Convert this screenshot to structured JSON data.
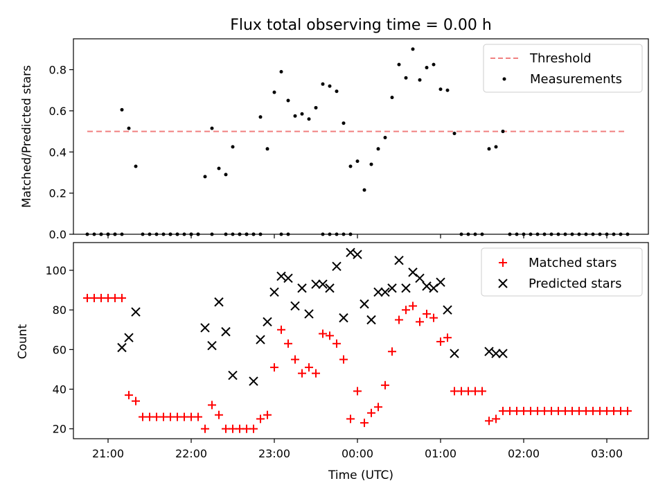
{
  "chart_data": [
    {
      "type": "scatter",
      "title": "Flux total observing time = 0.00 h",
      "xlabel": "",
      "ylabel": "Matched/Predicted stars",
      "xlim": [
        "20:35",
        "03:30"
      ],
      "ylim": [
        0,
        0.95
      ],
      "yticks": [
        "0.0",
        "0.2",
        "0.4",
        "0.6",
        "0.8"
      ],
      "legend_position": "top-right",
      "threshold": {
        "name": "Threshold",
        "value": 0.5,
        "x_start": "20:45",
        "x_end": "03:15",
        "color": "#f08080"
      },
      "series": [
        {
          "name": "Measurements",
          "color": "#000000",
          "x": [
            "20:45",
            "20:50",
            "20:55",
            "21:00",
            "21:05",
            "21:10",
            "21:15",
            "21:20",
            "21:25",
            "21:30",
            "21:35",
            "21:40",
            "21:45",
            "21:50",
            "21:55",
            "22:00",
            "22:05",
            "22:10",
            "22:15",
            "22:20",
            "22:25",
            "22:30",
            "22:35",
            "22:40",
            "22:45",
            "22:50",
            "22:55",
            "23:00",
            "23:05",
            "23:10",
            "23:15",
            "23:20",
            "23:25",
            "23:30",
            "23:35",
            "23:40",
            "23:45",
            "23:50",
            "23:55",
            "00:00",
            "00:05",
            "00:10",
            "00:15",
            "00:20",
            "00:25",
            "00:30",
            "00:35",
            "00:40",
            "00:45",
            "00:50",
            "00:55",
            "01:00",
            "01:05",
            "01:10",
            "01:15",
            "01:20",
            "01:25",
            "01:30",
            "01:35",
            "01:40",
            "01:45",
            "01:50",
            "01:55",
            "02:00",
            "02:05",
            "02:10",
            "02:15",
            "02:20",
            "02:25",
            "02:30",
            "02:35",
            "02:40",
            "02:45",
            "02:50",
            "02:55",
            "03:00",
            "03:05",
            "03:10",
            "03:15",
            "20:55",
            "21:00",
            "21:05",
            "21:10",
            "21:45",
            "21:50",
            "22:00",
            "22:05",
            "22:15",
            "22:25",
            "22:30",
            "22:35",
            "22:40",
            "22:45",
            "22:50",
            "23:05",
            "23:10",
            "23:35",
            "23:40",
            "23:45",
            "23:50",
            "23:55"
          ],
          "y": [
            0,
            0,
            0,
            0,
            0,
            0.605,
            0.515,
            0.33,
            0,
            0,
            0,
            0,
            0,
            0,
            0,
            0,
            0,
            0.28,
            0.515,
            0.32,
            0.29,
            0.425,
            0,
            0,
            0,
            0.57,
            0.415,
            0.69,
            0.79,
            0.65,
            0.575,
            0.585,
            0.56,
            0.615,
            0.73,
            0.72,
            0.695,
            0.54,
            0.33,
            0.355,
            0.215,
            0.34,
            0.415,
            0.47,
            0.665,
            0.825,
            0.76,
            0.9,
            0.75,
            0.81,
            0.825,
            0.705,
            0.7,
            0.49,
            0,
            0,
            0,
            0,
            0.415,
            0.425,
            0.5,
            0,
            0,
            0,
            0,
            0,
            0,
            0,
            0,
            0,
            0,
            0,
            0,
            0,
            0,
            0,
            0,
            0,
            0,
            0,
            0,
            0,
            0,
            0,
            0,
            0,
            0,
            0,
            0,
            0,
            0,
            0,
            0,
            0,
            0,
            0,
            0,
            0,
            0,
            0,
            0
          ]
        }
      ]
    },
    {
      "type": "scatter",
      "title": "",
      "xlabel": "Time (UTC)",
      "ylabel": "Count",
      "xlim": [
        "20:35",
        "03:30"
      ],
      "ylim": [
        15,
        114
      ],
      "yticks": [
        "20",
        "40",
        "60",
        "80",
        "100"
      ],
      "xticks": [
        "21:00",
        "22:00",
        "23:00",
        "00:00",
        "01:00",
        "02:00",
        "03:00"
      ],
      "legend_position": "top-right",
      "series": [
        {
          "name": "Matched stars",
          "marker": "plus",
          "color": "#ff0000",
          "x": [
            "20:45",
            "20:50",
            "20:55",
            "21:00",
            "21:05",
            "21:10",
            "21:15",
            "21:20",
            "21:25",
            "21:30",
            "21:35",
            "21:40",
            "21:45",
            "21:50",
            "21:55",
            "22:00",
            "22:05",
            "22:10",
            "22:15",
            "22:20",
            "22:25",
            "22:30",
            "22:35",
            "22:40",
            "22:45",
            "22:50",
            "22:55",
            "23:00",
            "23:05",
            "23:10",
            "23:15",
            "23:20",
            "23:25",
            "23:30",
            "23:35",
            "23:40",
            "23:45",
            "23:50",
            "23:55",
            "00:00",
            "00:05",
            "00:10",
            "00:15",
            "00:20",
            "00:25",
            "00:30",
            "00:35",
            "00:40",
            "00:45",
            "00:50",
            "00:55",
            "01:00",
            "01:05",
            "01:10",
            "01:15",
            "01:20",
            "01:25",
            "01:30",
            "01:35",
            "01:40",
            "01:45",
            "01:50",
            "01:55",
            "02:00",
            "02:05",
            "02:10",
            "02:15",
            "02:20",
            "02:25",
            "02:30",
            "02:35",
            "02:40",
            "02:45",
            "02:50",
            "02:55",
            "03:00",
            "03:05",
            "03:10",
            "03:15"
          ],
          "y": [
            86,
            86,
            86,
            86,
            86,
            86,
            37,
            34,
            26,
            26,
            26,
            26,
            26,
            26,
            26,
            26,
            26,
            20,
            32,
            27,
            20,
            20,
            20,
            20,
            20,
            25,
            27,
            51,
            70,
            63,
            55,
            48,
            51,
            48,
            68,
            67,
            63,
            55,
            25,
            39,
            23,
            28,
            31,
            42,
            59,
            75,
            80,
            82,
            74,
            78,
            76,
            64,
            66,
            39,
            39,
            39,
            39,
            39,
            24,
            25,
            29,
            29,
            29,
            29,
            29,
            29,
            29,
            29,
            29,
            29,
            29,
            29,
            29,
            29,
            29,
            29,
            29,
            29,
            29
          ]
        },
        {
          "name": "Predicted stars",
          "marker": "x",
          "color": "#000000",
          "x": [
            "21:10",
            "21:15",
            "21:20",
            "22:10",
            "22:15",
            "22:20",
            "22:25",
            "22:30",
            "22:45",
            "22:50",
            "22:55",
            "23:00",
            "23:05",
            "23:10",
            "23:15",
            "23:20",
            "23:25",
            "23:30",
            "23:35",
            "23:40",
            "23:45",
            "23:50",
            "23:55",
            "00:00",
            "00:05",
            "00:10",
            "00:15",
            "00:20",
            "00:25",
            "00:30",
            "00:35",
            "00:40",
            "00:45",
            "00:50",
            "00:55",
            "01:00",
            "01:05",
            "01:10",
            "01:35",
            "01:40",
            "01:45"
          ],
          "y": [
            61,
            66,
            79,
            71,
            62,
            84,
            69,
            47,
            44,
            65,
            74,
            89,
            97,
            96,
            82,
            91,
            78,
            93,
            93,
            91,
            102,
            76,
            109,
            108,
            83,
            75,
            89,
            89,
            91,
            105,
            91,
            99,
            96,
            92,
            91,
            94,
            80,
            58,
            59,
            58,
            58
          ]
        }
      ]
    }
  ]
}
